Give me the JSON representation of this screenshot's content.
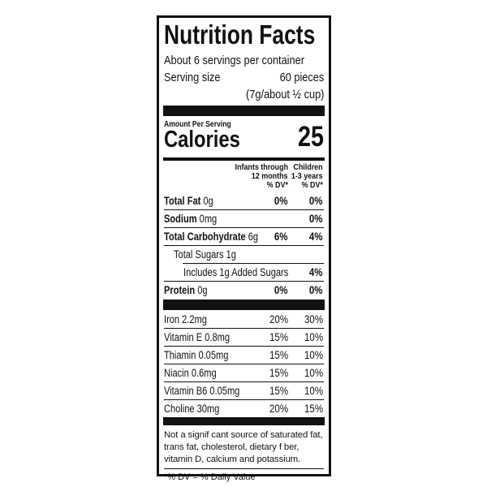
{
  "title": "Nutrition Facts",
  "servings_per_container": "About 6 servings per container",
  "serving_size_label": "Serving size",
  "serving_size_value": "60 pieces",
  "serving_size_detail": "(7g/about ½ cup)",
  "amount_per_serving": "Amount Per Serving",
  "calories_label": "Calories",
  "calories_value": "25",
  "column_headers": [
    {
      "line1": "Infants through",
      "line2": "12 months",
      "line3": "% DV*"
    },
    {
      "line1": "Children",
      "line2": "1-3 years",
      "line3": "% DV*"
    }
  ],
  "nutrients": [
    {
      "name": "Total Fat",
      "amount": "0g",
      "dv_infants": "0%",
      "dv_children": "0%"
    },
    {
      "name": "Sodium",
      "amount": "0mg",
      "dv_infants": "",
      "dv_children": "0%"
    },
    {
      "name": "Total Carbohydrate",
      "amount": "6g",
      "dv_infants": "6%",
      "dv_children": "4%"
    },
    {
      "name": "Total Sugars 1g",
      "amount": "",
      "dv_infants": "",
      "dv_children": ""
    },
    {
      "name": "Includes 1g Added Sugars",
      "amount": "",
      "dv_infants": "",
      "dv_children": "4%"
    },
    {
      "name": "Protein",
      "amount": "0g",
      "dv_infants": "0%",
      "dv_children": "0%"
    }
  ],
  "vitamins": [
    {
      "name": "Iron 2.2mg",
      "dv_infants": "20%",
      "dv_children": "30%"
    },
    {
      "name": "Vitamin E 0.8mg",
      "dv_infants": "15%",
      "dv_children": "10%"
    },
    {
      "name": "Thiamin 0.05mg",
      "dv_infants": "15%",
      "dv_children": "10%"
    },
    {
      "name": "Niacin 0.6mg",
      "dv_infants": "15%",
      "dv_children": "10%"
    },
    {
      "name": "Vitamin B6 0.05mg",
      "dv_infants": "15%",
      "dv_children": "10%"
    },
    {
      "name": "Choline 30mg",
      "dv_infants": "20%",
      "dv_children": "15%"
    }
  ],
  "footnote": "Not a signif cant source of saturated fat, trans fat, cholesterol, dietary f ber, vitamin D, calcium and potassium.",
  "dv_note": "*% DV = % Daily Value"
}
